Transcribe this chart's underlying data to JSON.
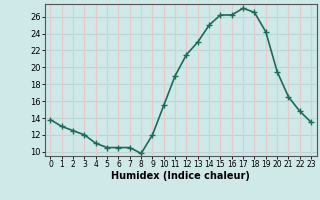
{
  "x": [
    0,
    1,
    2,
    3,
    4,
    5,
    6,
    7,
    8,
    9,
    10,
    11,
    12,
    13,
    14,
    15,
    16,
    17,
    18,
    19,
    20,
    21,
    22,
    23
  ],
  "y": [
    13.8,
    13.0,
    12.5,
    12.0,
    11.0,
    10.5,
    10.5,
    10.5,
    9.8,
    12.0,
    15.5,
    19.0,
    21.5,
    23.0,
    25.0,
    26.2,
    26.2,
    27.0,
    26.5,
    24.2,
    19.5,
    16.5,
    14.8,
    13.5
  ],
  "line_color": "#1a6b5a",
  "marker": "+",
  "marker_size": 4,
  "bg_color": "#cfe8e8",
  "hgrid_color": "#b8d8d8",
  "vgrid_color": "#e8c8c8",
  "xlabel": "Humidex (Indice chaleur)",
  "xlim": [
    -0.5,
    23.5
  ],
  "ylim": [
    9.5,
    27.5
  ],
  "yticks": [
    10,
    12,
    14,
    16,
    18,
    20,
    22,
    24,
    26
  ],
  "xticks": [
    0,
    1,
    2,
    3,
    4,
    5,
    6,
    7,
    8,
    9,
    10,
    11,
    12,
    13,
    14,
    15,
    16,
    17,
    18,
    19,
    20,
    21,
    22,
    23
  ],
  "spine_color": "#555555",
  "xlabel_fontsize": 7,
  "tick_fontsize": 6,
  "linewidth": 1.2,
  "markeredgewidth": 1.0
}
